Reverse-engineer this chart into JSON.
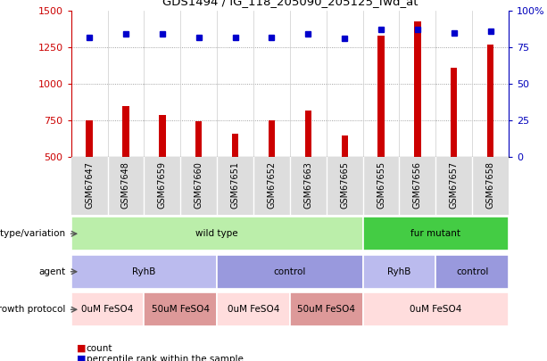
{
  "title": "GDS1494 / IG_118_205090_205125_fwd_at",
  "samples": [
    "GSM67647",
    "GSM67648",
    "GSM67659",
    "GSM67660",
    "GSM67651",
    "GSM67652",
    "GSM67663",
    "GSM67665",
    "GSM67655",
    "GSM67656",
    "GSM67657",
    "GSM67658"
  ],
  "counts": [
    750,
    850,
    790,
    745,
    660,
    750,
    820,
    645,
    1330,
    1430,
    1110,
    1270
  ],
  "percentiles": [
    82,
    84,
    84,
    82,
    82,
    82,
    84,
    81,
    87,
    87,
    85,
    86
  ],
  "ylim_left": [
    500,
    1500
  ],
  "ylim_right": [
    0,
    100
  ],
  "yticks_left": [
    500,
    750,
    1000,
    1250,
    1500
  ],
  "yticks_right": [
    0,
    25,
    50,
    75,
    100
  ],
  "bar_color": "#cc0000",
  "dot_color": "#0000cc",
  "genotype_row": {
    "label": "genotype/variation",
    "groups": [
      {
        "text": "wild type",
        "start": 0,
        "end": 8,
        "color": "#bbeeaa"
      },
      {
        "text": "fur mutant",
        "start": 8,
        "end": 12,
        "color": "#44cc44"
      }
    ]
  },
  "agent_row": {
    "label": "agent",
    "groups": [
      {
        "text": "RyhB",
        "start": 0,
        "end": 4,
        "color": "#bbbbee"
      },
      {
        "text": "control",
        "start": 4,
        "end": 8,
        "color": "#9999dd"
      },
      {
        "text": "RyhB",
        "start": 8,
        "end": 10,
        "color": "#bbbbee"
      },
      {
        "text": "control",
        "start": 10,
        "end": 12,
        "color": "#9999dd"
      }
    ]
  },
  "growth_row": {
    "label": "growth protocol",
    "groups": [
      {
        "text": "0uM FeSO4",
        "start": 0,
        "end": 2,
        "color": "#ffdddd"
      },
      {
        "text": "50uM FeSO4",
        "start": 2,
        "end": 4,
        "color": "#dd9999"
      },
      {
        "text": "0uM FeSO4",
        "start": 4,
        "end": 6,
        "color": "#ffdddd"
      },
      {
        "text": "50uM FeSO4",
        "start": 6,
        "end": 8,
        "color": "#dd9999"
      },
      {
        "text": "0uM FeSO4",
        "start": 8,
        "end": 12,
        "color": "#ffdddd"
      }
    ]
  },
  "legend_count_color": "#cc0000",
  "legend_pct_color": "#0000cc",
  "tick_color_left": "#cc0000",
  "tick_color_right": "#0000bb",
  "grid_color": "#888888",
  "bg_color": "#ffffff",
  "label_band_color": "#dddddd"
}
